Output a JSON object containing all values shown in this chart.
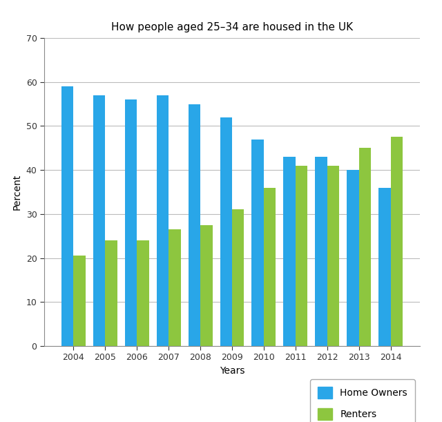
{
  "title": "How people aged 25–34 are housed in the UK",
  "xlabel": "Years",
  "ylabel": "Percent",
  "years": [
    2004,
    2005,
    2006,
    2007,
    2008,
    2009,
    2010,
    2011,
    2012,
    2013,
    2014
  ],
  "home_owners": [
    59,
    57,
    56,
    57,
    55,
    52,
    47,
    43,
    43,
    40,
    36
  ],
  "renters": [
    20.5,
    24,
    24,
    26.5,
    27.5,
    31,
    36,
    41,
    41,
    45,
    47.5
  ],
  "home_owner_color": "#29A6E8",
  "renter_color": "#8DC63F",
  "ylim": [
    0,
    70
  ],
  "yticks": [
    0,
    10,
    20,
    30,
    40,
    50,
    60,
    70
  ],
  "bar_width": 0.38,
  "background_color": "#FFFFFF",
  "grid_color": "#BBBBBB",
  "legend_labels": [
    "Home Owners",
    "Renters"
  ],
  "title_fontsize": 11,
  "axis_label_fontsize": 10,
  "tick_fontsize": 9
}
